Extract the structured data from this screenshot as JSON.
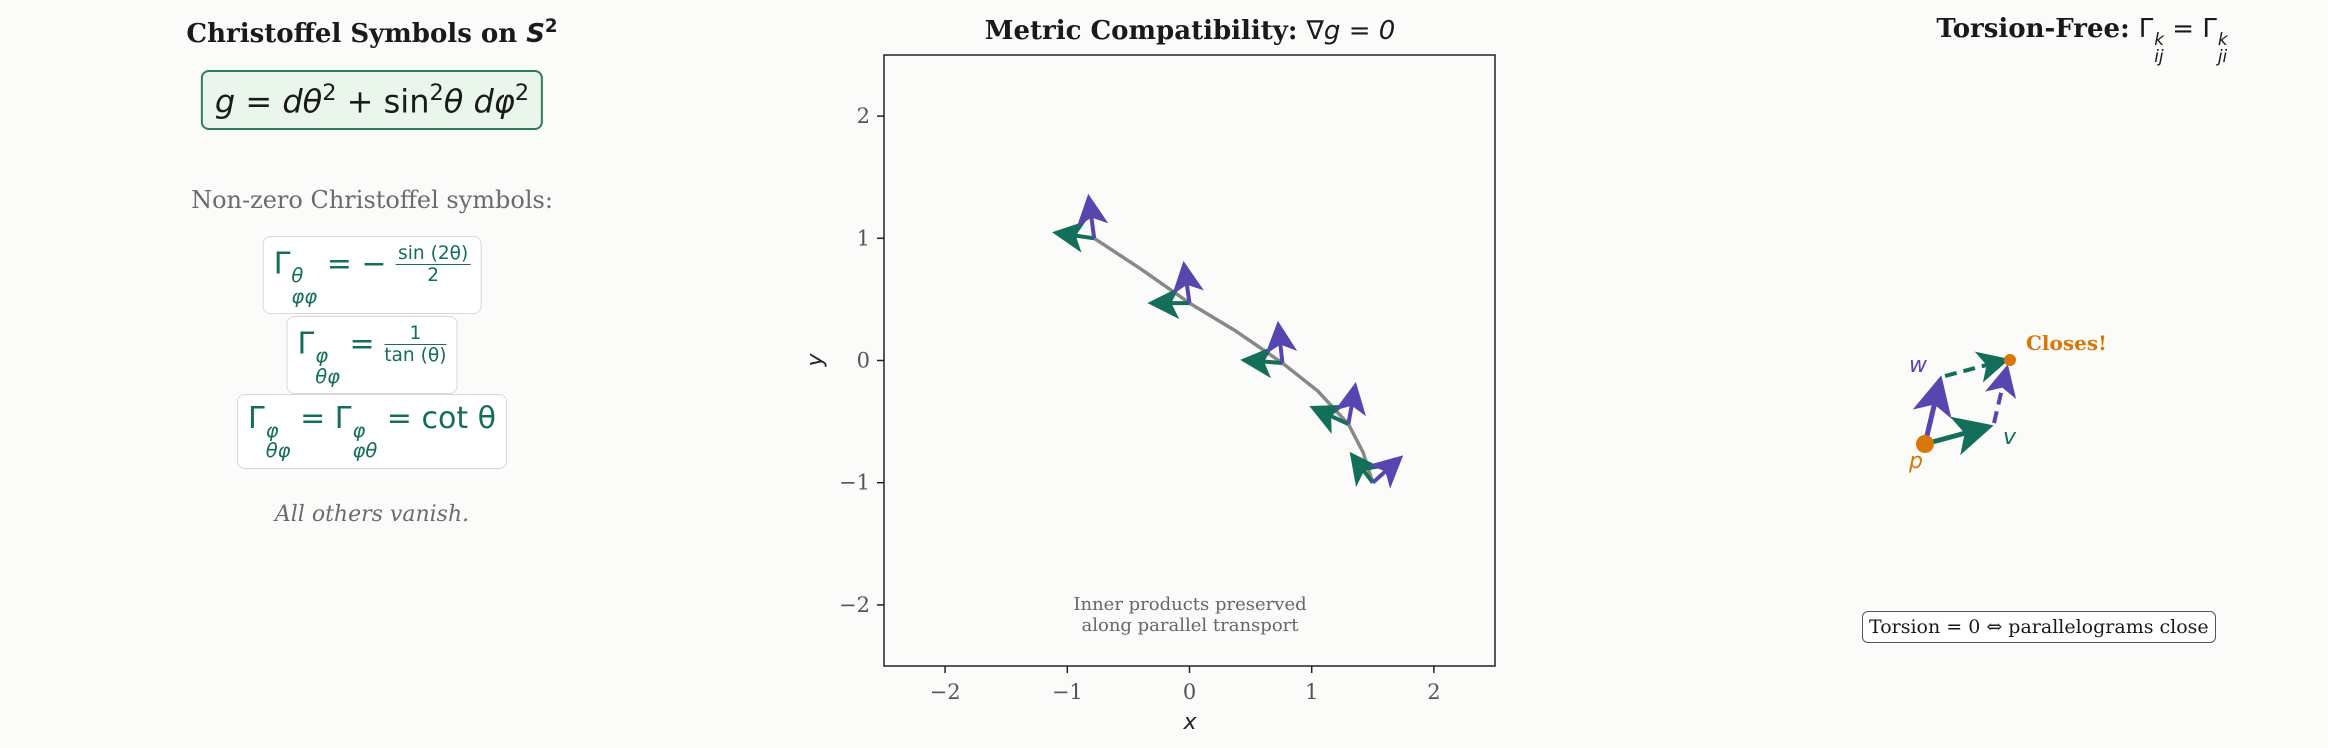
{
  "left_panel": {
    "title": "Christoffel Symbols on ",
    "title_math": "S",
    "title_sup": "2",
    "metric": {
      "lhs": "g = dθ",
      "sup1": "2",
      "mid": " + sin",
      "sup2": "2",
      "rhs": "θ dφ",
      "sup3": "2"
    },
    "nonzero_label": "Non-zero Christoffel symbols:",
    "symbols": [
      {
        "sup": "θ",
        "sub": "φφ",
        "rhs": "= −",
        "num": "sin (2θ)",
        "den": "2"
      },
      {
        "sup": "φ",
        "sub": "θφ",
        "rhs": "=",
        "num": "1",
        "den": "tan (θ)"
      },
      {
        "sup1": "φ",
        "sub1": "θφ",
        "sup2": "φ",
        "sub2": "φθ",
        "rhs": "= cot θ"
      }
    ],
    "footer": "All others vanish."
  },
  "center_panel": {
    "title": "Metric Compatibility: ",
    "title_math": "∇g = 0",
    "annotation_line1": "Inner products preserved",
    "annotation_line2": "along parallel transport"
  },
  "chart_data": {
    "type": "line",
    "xlabel": "x",
    "ylabel": "y",
    "xlim": [
      -2.5,
      2.5
    ],
    "ylim": [
      -2.5,
      2.5
    ],
    "xticks": [
      -2,
      -1,
      0,
      1,
      2
    ],
    "yticks": [
      -2,
      -1,
      0,
      1,
      2
    ],
    "xtick_labels": [
      "−2",
      "−1",
      "0",
      "1",
      "2"
    ],
    "ytick_labels": [
      "−2",
      "−1",
      "0",
      "1",
      "2"
    ],
    "grid": false,
    "curve": {
      "color": "#888888",
      "x": [
        -0.78,
        -0.4,
        0.0,
        0.38,
        0.76,
        1.05,
        1.3,
        1.42,
        1.5
      ],
      "y": [
        1.0,
        0.75,
        0.47,
        0.24,
        -0.02,
        -0.25,
        -0.52,
        -0.75,
        -1.0
      ]
    },
    "frames": [
      {
        "x": -0.78,
        "y": 1.0,
        "v1": [
          -0.28,
          0.04
        ],
        "v2": [
          -0.04,
          0.3
        ]
      },
      {
        "x": 0.0,
        "y": 0.47,
        "v1": [
          -0.28,
          0.0
        ],
        "v2": [
          -0.04,
          0.28
        ]
      },
      {
        "x": 0.76,
        "y": -0.02,
        "v1": [
          -0.28,
          0.02
        ],
        "v2": [
          -0.03,
          0.28
        ]
      },
      {
        "x": 1.3,
        "y": -0.52,
        "v1": [
          -0.26,
          0.12
        ],
        "v2": [
          0.05,
          0.28
        ]
      },
      {
        "x": 1.5,
        "y": -1.0,
        "v1": [
          -0.15,
          0.2
        ],
        "v2": [
          0.2,
          0.18
        ]
      }
    ],
    "frame_colors": [
      "#136f5a",
      "#5646b0"
    ]
  },
  "right_panel": {
    "title": "Torsion-Free: ",
    "title_math_lhs": "Γ",
    "sup": "k",
    "sub_lhs": "ij",
    "sub_rhs": "ji",
    "eq": " = ",
    "label_p": "p",
    "label_v": "v",
    "label_w": "w",
    "label_closes": "Closes!",
    "torsion_note": "Torsion  = 0 ⇔  parallelograms close",
    "colors": {
      "orange": "#d97706",
      "green": "#136f5a",
      "purple": "#5646b0"
    }
  }
}
